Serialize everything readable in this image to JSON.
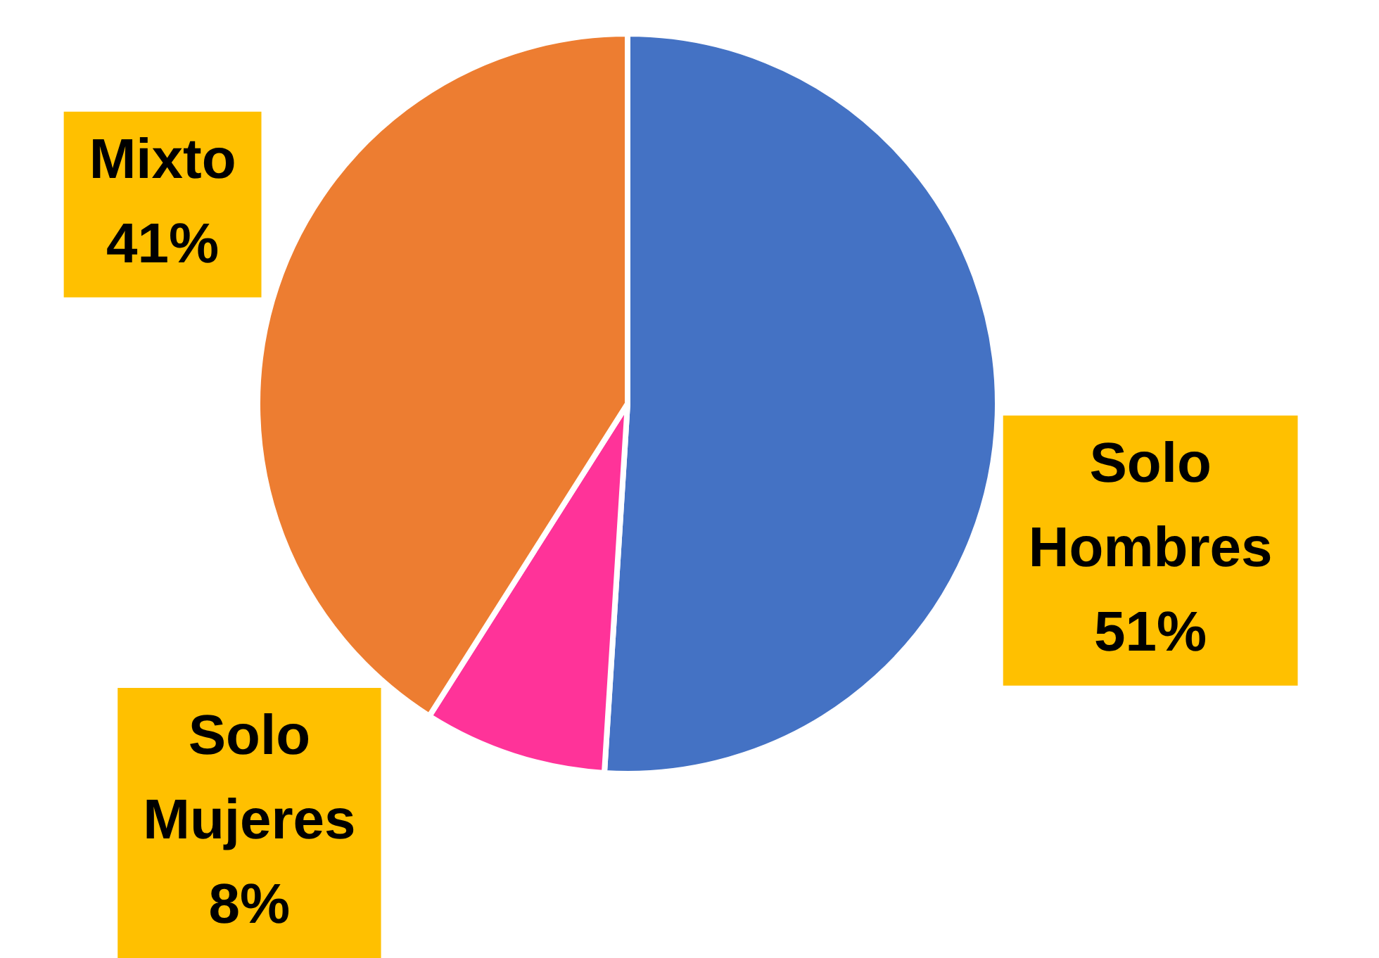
{
  "chart_data": {
    "type": "pie",
    "categories": [
      "Solo Hombres",
      "Solo Mujeres",
      "Mixto"
    ],
    "values": [
      51,
      8,
      41
    ],
    "colors": [
      "#4472c4",
      "#ff3399",
      "#ed7d31"
    ],
    "value_labels": [
      "51%",
      "8%",
      "41%"
    ],
    "legend": false
  }
}
